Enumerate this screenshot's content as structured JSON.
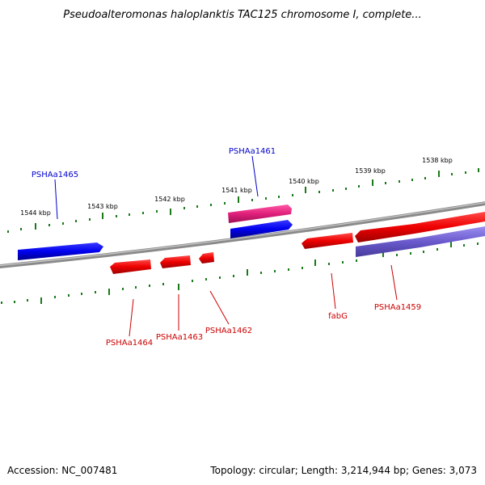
{
  "title": "Pseudoalteromonas haloplanktis TAC125 chromosome I, complete...",
  "footer": {
    "accession": "Accession: NC_007481",
    "summary": "Topology: circular; Length: 3,214,944 bp; Genes: 3,073"
  },
  "colors": {
    "backbone": "#888888",
    "tick": "#1a7a1a",
    "forward_gene": "#0000ee",
    "reverse_gene": "#ee0000",
    "rna_gene": "#e0207a",
    "other_gene": "#6a5acd",
    "forward_label": "#0000cc",
    "reverse_label": "#cc0000"
  },
  "ticks": [
    {
      "label": "1538 kbp"
    },
    {
      "label": "1539 kbp"
    },
    {
      "label": "1540 kbp"
    },
    {
      "label": "1541 kbp"
    },
    {
      "label": "1542 kbp"
    },
    {
      "label": "1543 kbp"
    },
    {
      "label": "1544 kbp"
    }
  ],
  "genes": [
    {
      "id": "PSHAa1465",
      "label": "PSHAa1465",
      "strand": "forward"
    },
    {
      "id": "PSHAa1461",
      "label": "PSHAa1461",
      "strand": "forward"
    },
    {
      "id": "PSHAa1464",
      "label": "PSHAa1464",
      "strand": "reverse"
    },
    {
      "id": "PSHAa1463",
      "label": "PSHAa1463",
      "strand": "reverse"
    },
    {
      "id": "PSHAa1462",
      "label": "PSHAa1462",
      "strand": "reverse"
    },
    {
      "id": "fabG",
      "label": "fabG",
      "strand": "reverse"
    },
    {
      "id": "PSHAa1459",
      "label": "PSHAa1459",
      "strand": "reverse"
    }
  ]
}
